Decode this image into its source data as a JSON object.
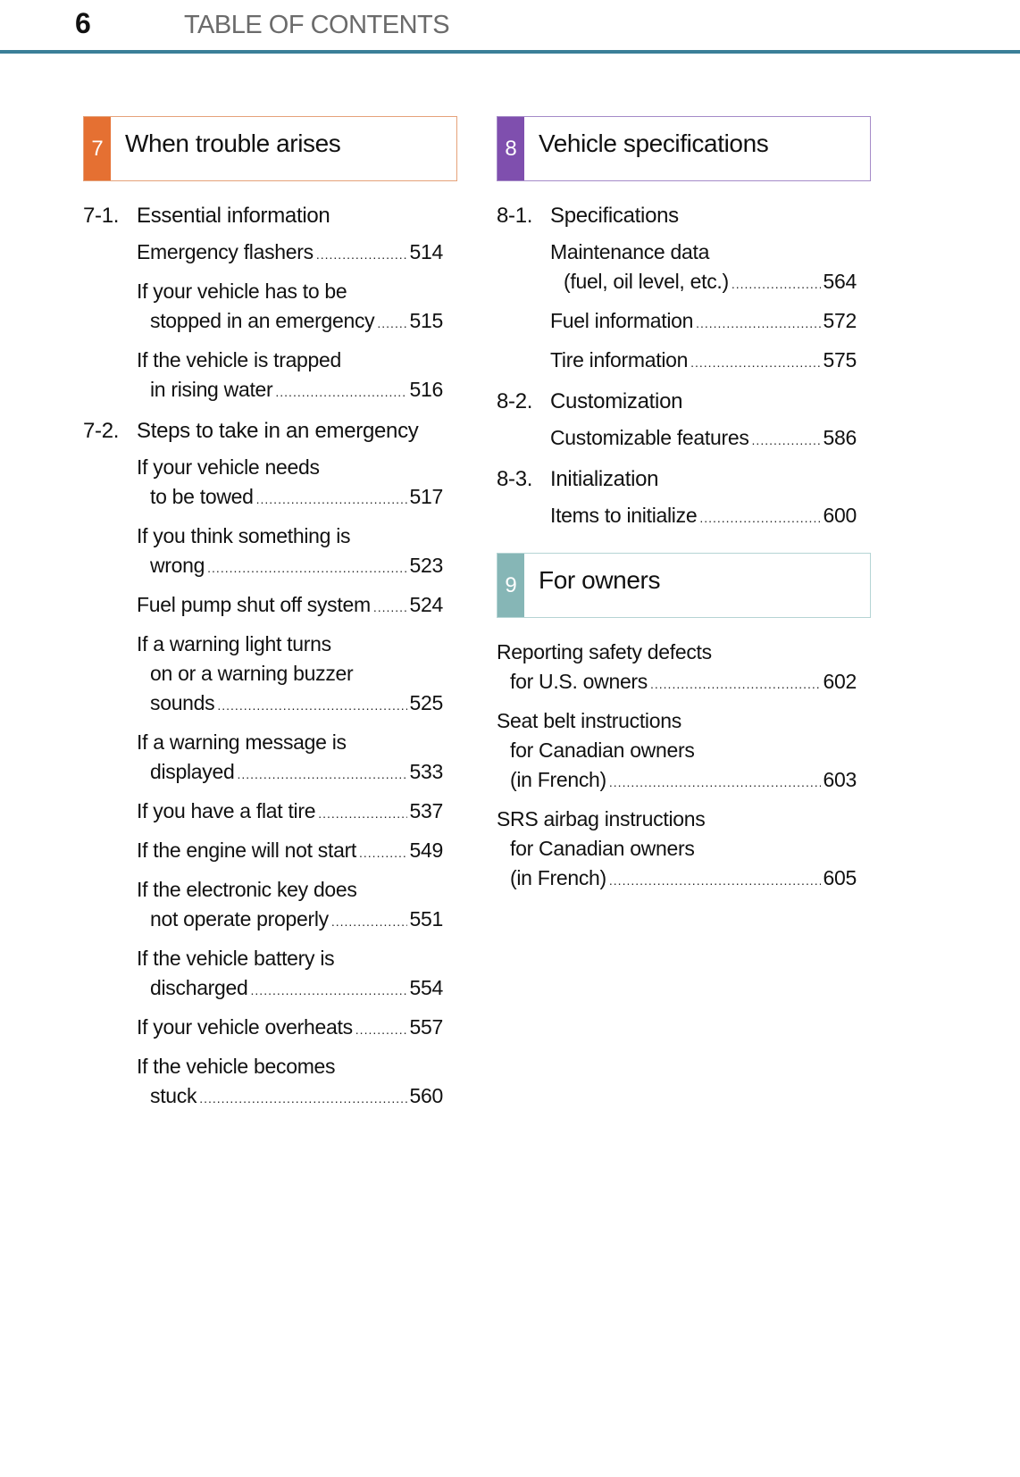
{
  "header": {
    "page_number": "6",
    "title": "TABLE OF CONTENTS"
  },
  "colors": {
    "rule": "#3a7f98",
    "sec7": "#e57032",
    "sec8": "#7f4fae",
    "sec9": "#86b6b6"
  },
  "left": {
    "section": {
      "number": "7",
      "title": "When trouble arises"
    },
    "groups": [
      {
        "number": "7-1.",
        "title": "Essential information",
        "entries": [
          {
            "lines": [
              "Emergency flashers"
            ],
            "page": "514"
          },
          {
            "lines": [
              "If your vehicle has to be",
              "stopped in an emergency"
            ],
            "page": "515"
          },
          {
            "lines": [
              "If the vehicle is trapped",
              "in rising water"
            ],
            "page": "516"
          }
        ]
      },
      {
        "number": "7-2.",
        "title": "Steps to take in an emergency",
        "entries": [
          {
            "lines": [
              "If your vehicle needs",
              "to be towed"
            ],
            "page": "517"
          },
          {
            "lines": [
              "If you think something is",
              "wrong"
            ],
            "page": "523"
          },
          {
            "lines": [
              "Fuel pump shut off system"
            ],
            "page": "524"
          },
          {
            "lines": [
              "If a warning light turns",
              "on or a warning buzzer",
              "sounds"
            ],
            "page": "525"
          },
          {
            "lines": [
              "If a warning message is",
              "displayed"
            ],
            "page": "533"
          },
          {
            "lines": [
              "If you have a flat tire"
            ],
            "page": "537"
          },
          {
            "lines": [
              "If the engine will not start"
            ],
            "page": "549"
          },
          {
            "lines": [
              "If the electronic key does",
              "not operate properly"
            ],
            "page": "551"
          },
          {
            "lines": [
              "If the vehicle battery is",
              "discharged"
            ],
            "page": "554"
          },
          {
            "lines": [
              "If your vehicle overheats"
            ],
            "page": "557"
          },
          {
            "lines": [
              "If the vehicle becomes",
              "stuck"
            ],
            "page": "560"
          }
        ]
      }
    ]
  },
  "right": {
    "section": {
      "number": "8",
      "title": "Vehicle specifications"
    },
    "groups": [
      {
        "number": "8-1.",
        "title": "Specifications",
        "entries": [
          {
            "lines": [
              "Maintenance data",
              "(fuel, oil level, etc.)"
            ],
            "page": "564"
          },
          {
            "lines": [
              "Fuel information"
            ],
            "page": "572"
          },
          {
            "lines": [
              "Tire information"
            ],
            "page": "575"
          }
        ]
      },
      {
        "number": "8-2.",
        "title": "Customization",
        "entries": [
          {
            "lines": [
              "Customizable features"
            ],
            "page": "586"
          }
        ]
      },
      {
        "number": "8-3.",
        "title": "Initialization",
        "entries": [
          {
            "lines": [
              "Items to initialize"
            ],
            "page": "600"
          }
        ]
      }
    ],
    "section9": {
      "number": "9",
      "title": "For owners"
    },
    "owners": [
      {
        "lines": [
          "Reporting safety defects",
          "for U.S. owners"
        ],
        "page": "602"
      },
      {
        "lines": [
          "Seat belt instructions",
          "for Canadian owners",
          "(in French)"
        ],
        "page": "603"
      },
      {
        "lines": [
          "SRS airbag instructions",
          "for Canadian owners",
          "(in French)"
        ],
        "page": "605"
      }
    ]
  }
}
